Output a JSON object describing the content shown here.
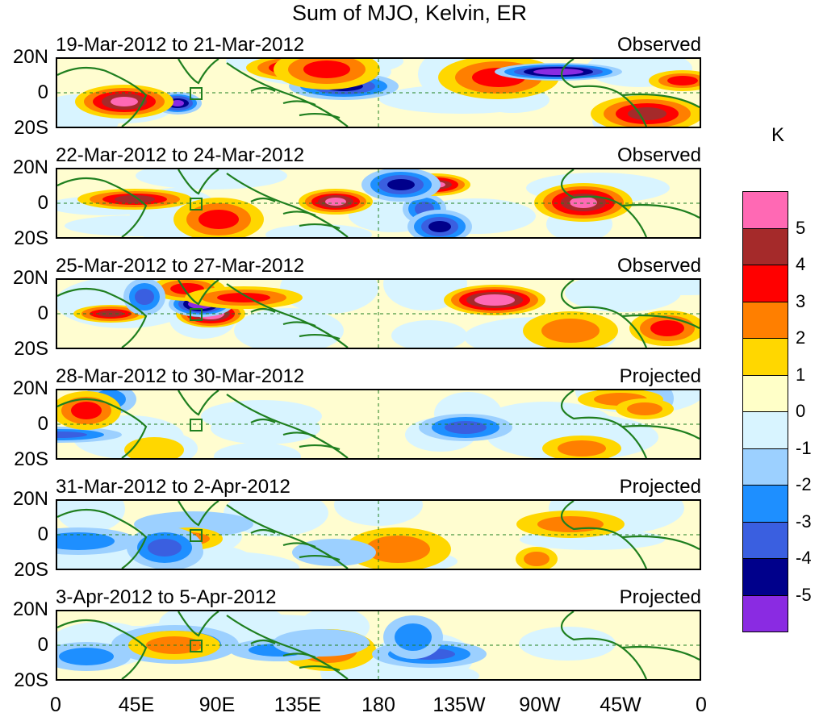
{
  "title": "Sum of MJO, Kelvin, ER",
  "panels": [
    {
      "label": "19-Mar-2012 to 21-Mar-2012",
      "status": "Observed"
    },
    {
      "label": "22-Mar-2012 to 24-Mar-2012",
      "status": "Observed"
    },
    {
      "label": "25-Mar-2012 to 27-Mar-2012",
      "status": "Observed"
    },
    {
      "label": "28-Mar-2012 to 30-Mar-2012",
      "status": "Projected"
    },
    {
      "label": "31-Mar-2012 to 2-Apr-2012",
      "status": "Projected"
    },
    {
      "label": "3-Apr-2012 to 5-Apr-2012",
      "status": "Projected"
    }
  ],
  "lat_labels": [
    "20N",
    "0",
    "20S"
  ],
  "lon_labels": [
    "0",
    "45E",
    "90E",
    "135E",
    "180",
    "135W",
    "90W",
    "45W",
    "0"
  ],
  "colorbar": {
    "unit": "K",
    "colors": [
      "#ff69b4",
      "#a52a2a",
      "#ff0000",
      "#ff7f00",
      "#ffd700",
      "#ffffc8",
      "#d8f4ff",
      "#9cd0ff",
      "#1e8fff",
      "#3a5fe0",
      "#00008b",
      "#8a2be2"
    ],
    "labels": [
      "5",
      "4",
      "3",
      "2",
      "1",
      "0",
      "-1",
      "-2",
      "-3",
      "-4",
      "-5"
    ]
  }
}
